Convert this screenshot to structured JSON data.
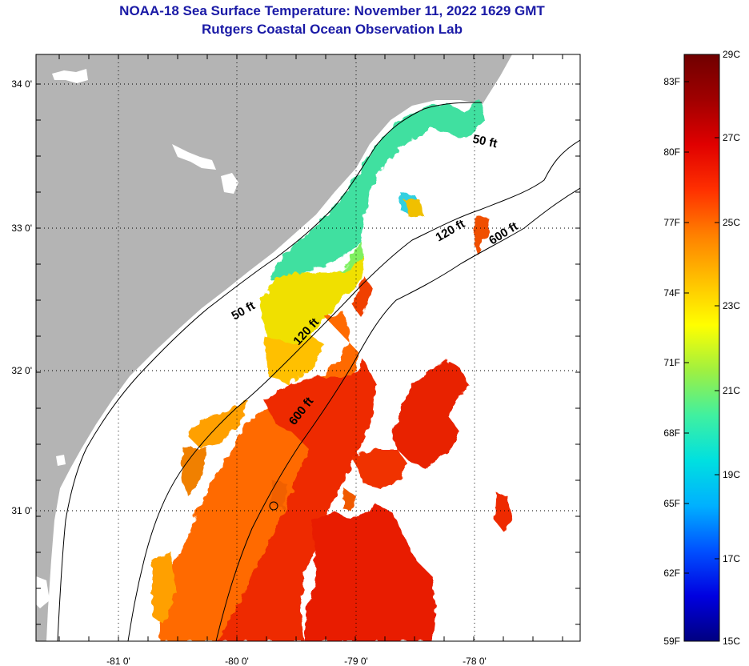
{
  "title": "NOAA-18 Sea Surface Temperature:  November 11, 2022 1629 GMT",
  "subtitle": "Rutgers Coastal Ocean Observation Lab",
  "map": {
    "lat_labels": [
      "34 0'",
      "33 0'",
      "32 0'",
      "31 0'"
    ],
    "lon_labels": [
      "-81 0'",
      "-80 0'",
      "-79 0'",
      "-78 0'"
    ],
    "contour_labels": [
      "50 ft",
      "120 ft",
      "600 ft",
      "50 ft",
      "120 ft",
      "600 ft"
    ],
    "land_color": "#b4b4b4"
  },
  "colorbar": {
    "fahrenheit_labels": [
      "83F",
      "80F",
      "77F",
      "74F",
      "71F",
      "68F",
      "65F",
      "62F",
      "59F"
    ],
    "celsius_labels": [
      "29C",
      "27C",
      "25C",
      "23C",
      "21C",
      "19C",
      "17C",
      "15C"
    ],
    "colors": [
      "#000080",
      "#0000e0",
      "#0050ff",
      "#00b0ff",
      "#00e0e0",
      "#40f0a0",
      "#a0f040",
      "#ffff00",
      "#ffc000",
      "#ff8000",
      "#ff3000",
      "#e00000",
      "#a00000",
      "#700000"
    ]
  }
}
